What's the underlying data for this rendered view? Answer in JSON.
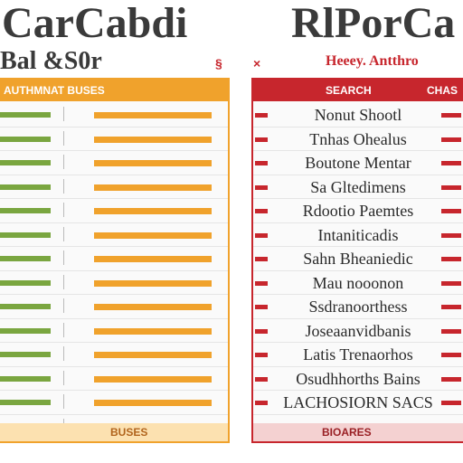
{
  "left": {
    "title": "Car",
    "title_right": "Cabdi",
    "subtitle": "Bal &S0r",
    "header": "AUTHMNAT BUSES",
    "footer": "BUSES"
  },
  "right": {
    "title": "RlPorCa",
    "subtitle": "Heeey. Antthro",
    "header": "SEARCH",
    "header_right": "CHAS",
    "rows": [
      "Nonut Shootl",
      "Tnhas Ohealus",
      "Boutone Mentar",
      "Sa Gltedimens",
      "Rdootio Paemtes",
      "Intaniticadis",
      "Sahn Bheaniedic",
      "Mau nooonon",
      "Ssdranoorthess",
      "Joseaanvidbanis",
      "Latis Trenaorhos",
      "Osudhhorths Bains",
      "LACHOSIORN SACS"
    ],
    "footer": "BIOARES"
  },
  "marks": {
    "pin": "§",
    "x": "×"
  },
  "colors": {
    "orange": "#f0a22c",
    "green": "#7aa640",
    "red": "#c7262d"
  }
}
